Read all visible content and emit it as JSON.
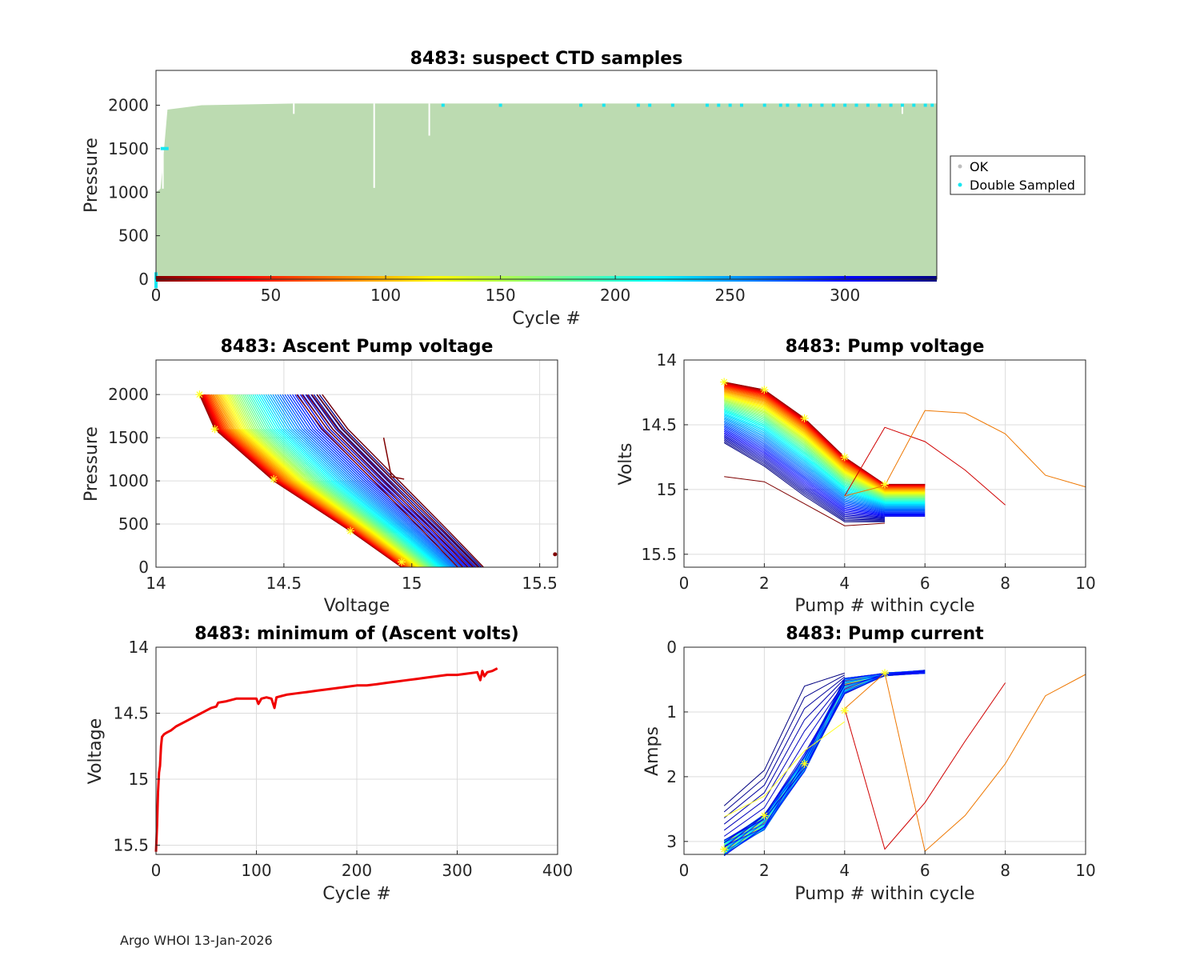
{
  "footer": "Argo WHOI 13-Jan-2026",
  "colors": {
    "axis": "#262626",
    "grid": "#dcdcdc",
    "ok": "#bcdbb1",
    "double": "#17e6f0",
    "red": "#f00000",
    "yellow": "#ffff22"
  },
  "chart_data": [
    {
      "id": "ctd",
      "type": "scatter",
      "title": "8483: suspect CTD samples",
      "xlabel": "Cycle #",
      "ylabel": "Pressure",
      "xlim": [
        0,
        340
      ],
      "ylim": [
        2400,
        0
      ],
      "xticks": [
        "0",
        "50",
        "100",
        "150",
        "200",
        "250",
        "300"
      ],
      "yticks": [
        "0",
        "500",
        "1000",
        "1500",
        "2000"
      ],
      "legend": {
        "placement": "outside-right",
        "entries": [
          "OK",
          "Double Sampled"
        ]
      },
      "ok_depth_range": [
        0,
        2020
      ],
      "spikes": [
        {
          "cycle": 95,
          "top": 1050
        },
        {
          "cycle": 119,
          "top": 1650
        },
        {
          "cycle": 3,
          "top": 1040
        },
        {
          "cycle": 60,
          "top": 1900
        },
        {
          "cycle": 325,
          "top": 1900
        }
      ],
      "double_sampled_cycles": [
        125,
        150,
        185,
        195,
        210,
        215,
        225,
        240,
        245,
        250,
        255,
        265,
        272,
        275,
        280,
        285,
        290,
        295,
        300,
        305,
        310,
        315,
        320,
        325,
        330,
        335,
        338
      ]
    },
    {
      "id": "ascent",
      "type": "line",
      "title": "8483: Ascent Pump voltage",
      "xlabel": "Voltage",
      "ylabel": "Pressure",
      "xlim": [
        14,
        15.57
      ],
      "ylim": [
        2400,
        0
      ],
      "xticks": [
        "14",
        "14.5",
        "15",
        "15.5"
      ],
      "yticks": [
        "0",
        "500",
        "1000",
        "1500",
        "2000"
      ],
      "profile_pressures": [
        2000,
        1600,
        1000,
        400,
        0
      ],
      "newest_profile": [
        14.17,
        14.23,
        14.46,
        14.77,
        14.96
      ],
      "oldest_profile": [
        14.65,
        14.75,
        14.95,
        15.15,
        15.28
      ],
      "markers": [
        [
          14.17,
          2000
        ],
        [
          14.23,
          1600
        ],
        [
          14.46,
          1020
        ],
        [
          14.76,
          420
        ],
        [
          14.96,
          60
        ]
      ],
      "outlier": [
        15.56,
        150
      ]
    },
    {
      "id": "pumpv",
      "type": "line",
      "title": "8483: Pump voltage",
      "xlabel": "Pump # within cycle",
      "ylabel": "Volts",
      "xlim": [
        0,
        10
      ],
      "ylim": [
        14,
        15.6
      ],
      "xticks": [
        "0",
        "2",
        "4",
        "6",
        "8",
        "10"
      ],
      "yticks": [
        "14",
        "14.5",
        "15",
        "15.5"
      ],
      "newest": [
        14.17,
        14.23,
        14.45,
        14.75,
        14.96,
        14.96
      ],
      "oldest": [
        14.64,
        14.82,
        15.05,
        15.25,
        15.25
      ],
      "outlier_red": {
        "x": [
          4,
          5,
          6,
          7,
          8
        ],
        "y": [
          15.05,
          14.52,
          14.63,
          14.85,
          15.12
        ]
      },
      "outlier_orange": {
        "x": [
          4,
          5,
          6,
          7,
          8,
          9,
          10
        ],
        "y": [
          15.05,
          14.97,
          14.39,
          14.41,
          14.57,
          14.89,
          14.98
        ]
      },
      "markers": [
        [
          1,
          14.17
        ],
        [
          2,
          14.23
        ],
        [
          3,
          14.45
        ],
        [
          4,
          14.75
        ],
        [
          5,
          14.96
        ]
      ]
    },
    {
      "id": "minv",
      "type": "line",
      "title": "8483: minimum of (Ascent volts)",
      "xlabel": "Cycle #",
      "ylabel": "Voltage",
      "xlim": [
        0,
        400
      ],
      "ylim": [
        14,
        15.57
      ],
      "xticks": [
        "0",
        "100",
        "200",
        "300",
        "400"
      ],
      "yticks": [
        "14",
        "14.5",
        "15",
        "15.5"
      ],
      "x": [
        0,
        1,
        2,
        3,
        4,
        5,
        6,
        8,
        10,
        15,
        20,
        30,
        40,
        45,
        50,
        55,
        60,
        62,
        70,
        80,
        90,
        100,
        102,
        105,
        110,
        115,
        118,
        120,
        125,
        130,
        140,
        150,
        160,
        170,
        180,
        190,
        200,
        210,
        220,
        230,
        240,
        250,
        260,
        270,
        280,
        290,
        300,
        310,
        320,
        323,
        325,
        327,
        330,
        335,
        340
      ],
      "y": [
        15.55,
        15.35,
        15.1,
        14.95,
        14.9,
        14.75,
        14.68,
        14.66,
        14.65,
        14.63,
        14.6,
        14.56,
        14.52,
        14.5,
        14.48,
        14.46,
        14.45,
        14.42,
        14.41,
        14.39,
        14.39,
        14.39,
        14.43,
        14.39,
        14.38,
        14.39,
        14.46,
        14.38,
        14.37,
        14.36,
        14.35,
        14.34,
        14.33,
        14.32,
        14.31,
        14.3,
        14.29,
        14.29,
        14.28,
        14.27,
        14.26,
        14.25,
        14.24,
        14.23,
        14.22,
        14.21,
        14.21,
        14.2,
        14.19,
        14.25,
        14.18,
        14.22,
        14.19,
        14.18,
        14.16
      ]
    },
    {
      "id": "pumpa",
      "type": "line",
      "title": "8483: Pump current",
      "xlabel": "Pump # within cycle",
      "ylabel": "Amps",
      "xlim": [
        0,
        10
      ],
      "ylim": [
        0,
        3.2
      ],
      "xticks": [
        "0",
        "2",
        "4",
        "6",
        "8",
        "10"
      ],
      "yticks": [
        "0",
        "1",
        "2",
        "3"
      ],
      "typical": [
        3.1,
        2.7,
        1.8,
        0.6,
        0.42,
        0.38
      ],
      "oldest": [
        2.45,
        1.9,
        0.6,
        0.4
      ],
      "outlier_red": {
        "x": [
          4,
          5,
          6,
          7,
          8
        ],
        "y": [
          0.95,
          3.12,
          2.4,
          1.45,
          0.55
        ]
      },
      "outlier_orange": {
        "x": [
          4,
          5,
          6,
          7,
          8,
          9,
          10
        ],
        "y": [
          0.95,
          0.4,
          3.15,
          2.6,
          1.8,
          0.75,
          0.42
        ]
      },
      "markers": [
        [
          1,
          3.12
        ],
        [
          2,
          2.6
        ],
        [
          3,
          1.8
        ],
        [
          4,
          0.98
        ],
        [
          5,
          0.4
        ]
      ]
    }
  ]
}
